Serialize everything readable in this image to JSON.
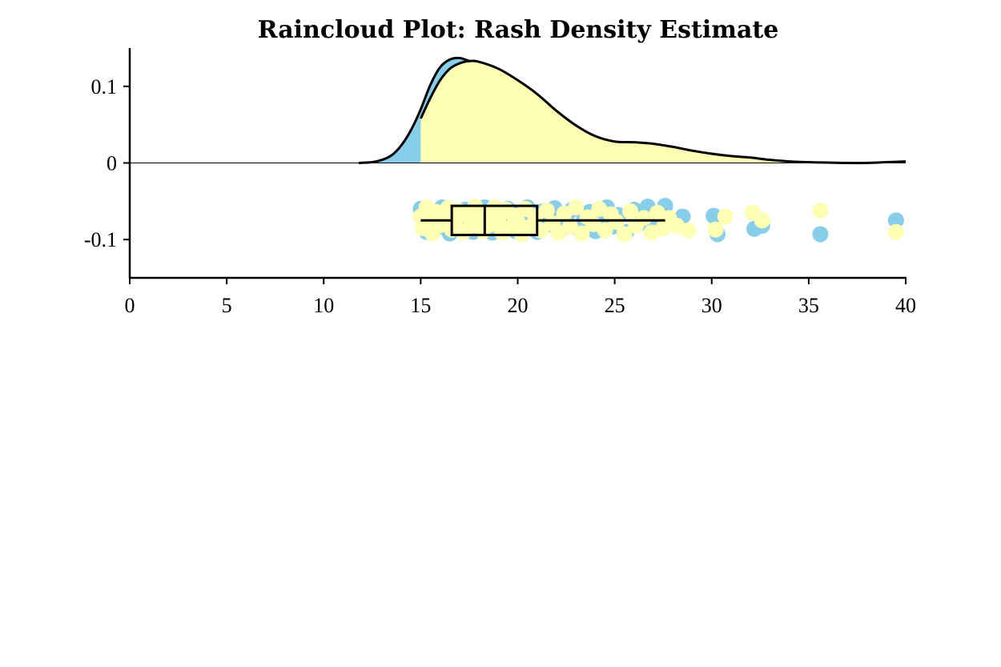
{
  "chart_data": {
    "type": "raincloud",
    "title": "Raincloud Plot: Rash Density Estimate",
    "xlabel": "",
    "ylabel": "",
    "xlim": [
      0,
      40
    ],
    "ylim": [
      -0.15,
      0.15
    ],
    "x_ticks": [
      0,
      5,
      10,
      15,
      20,
      25,
      30,
      35,
      40
    ],
    "x_tick_labels": [
      "0",
      "5",
      "10",
      "15",
      "20",
      "25",
      "30",
      "35",
      "40"
    ],
    "y_ticks": [
      0.1,
      0,
      -0.1
    ],
    "y_tick_labels": [
      "0.1",
      "0",
      "-0.1"
    ],
    "grid": false,
    "colors": {
      "group_a": "#87CEEB",
      "group_b": "#FFFFB3",
      "outline": "#000000"
    },
    "density_blue": {
      "x": [
        11.8,
        12.5,
        13.0,
        13.5,
        14.0,
        14.5,
        15.0,
        15.5,
        16.0,
        16.5,
        17.0,
        17.5
      ],
      "y": [
        0.0,
        0.001,
        0.004,
        0.01,
        0.023,
        0.043,
        0.07,
        0.102,
        0.125,
        0.135,
        0.137,
        0.133
      ]
    },
    "density_yellow": {
      "x": [
        15.0,
        15.5,
        16.0,
        16.5,
        17.0,
        17.5,
        18.0,
        19.0,
        20.0,
        21.0,
        22.0,
        23.0,
        24.0,
        25.0,
        26.0,
        27.0,
        28.0,
        29.0,
        30.0,
        31.0,
        32.0,
        33.0,
        34.0,
        35.0,
        36.0,
        37.0,
        38.0,
        39.0,
        40.0
      ],
      "y": [
        0.058,
        0.085,
        0.108,
        0.123,
        0.13,
        0.133,
        0.132,
        0.123,
        0.108,
        0.09,
        0.068,
        0.049,
        0.035,
        0.028,
        0.027,
        0.025,
        0.021,
        0.016,
        0.012,
        0.009,
        0.007,
        0.004,
        0.002,
        0.001,
        0.0005,
        0.0,
        0.0,
        0.001,
        0.002
      ]
    },
    "box": {
      "whisker_low": 15.0,
      "q1": 16.6,
      "median": 18.3,
      "q3": 21.0,
      "whisker_high": 27.6,
      "y_center": -0.075,
      "y_half_height": 0.019
    },
    "points_blue": [
      [
        15.0,
        -0.06
      ],
      [
        15.2,
        -0.078
      ],
      [
        15.3,
        -0.09
      ],
      [
        15.5,
        -0.065
      ],
      [
        15.7,
        -0.088
      ],
      [
        15.9,
        -0.072
      ],
      [
        16.1,
        -0.058
      ],
      [
        16.3,
        -0.083
      ],
      [
        16.5,
        -0.092
      ],
      [
        16.7,
        -0.066
      ],
      [
        16.9,
        -0.079
      ],
      [
        17.1,
        -0.087
      ],
      [
        17.3,
        -0.061
      ],
      [
        17.5,
        -0.074
      ],
      [
        17.7,
        -0.09
      ],
      [
        17.9,
        -0.068
      ],
      [
        18.1,
        -0.083
      ],
      [
        18.3,
        -0.058
      ],
      [
        18.5,
        -0.077
      ],
      [
        18.7,
        -0.091
      ],
      [
        18.9,
        -0.064
      ],
      [
        19.1,
        -0.08
      ],
      [
        19.3,
        -0.087
      ],
      [
        19.5,
        -0.06
      ],
      [
        19.7,
        -0.072
      ],
      [
        19.9,
        -0.089
      ],
      [
        20.1,
        -0.066
      ],
      [
        20.3,
        -0.082
      ],
      [
        20.5,
        -0.058
      ],
      [
        20.8,
        -0.076
      ],
      [
        21.0,
        -0.09
      ],
      [
        21.3,
        -0.063
      ],
      [
        21.6,
        -0.08
      ],
      [
        21.9,
        -0.059
      ],
      [
        22.2,
        -0.087
      ],
      [
        22.5,
        -0.07
      ],
      [
        22.8,
        -0.061
      ],
      [
        23.1,
        -0.085
      ],
      [
        23.4,
        -0.075
      ],
      [
        23.7,
        -0.064
      ],
      [
        24.0,
        -0.089
      ],
      [
        24.3,
        -0.078
      ],
      [
        24.6,
        -0.058
      ],
      [
        24.9,
        -0.083
      ],
      [
        25.2,
        -0.068
      ],
      [
        25.6,
        -0.09
      ],
      [
        26.0,
        -0.061
      ],
      [
        26.3,
        -0.079
      ],
      [
        26.7,
        -0.057
      ],
      [
        27.0,
        -0.086
      ],
      [
        27.3,
        -0.068
      ],
      [
        27.6,
        -0.056
      ],
      [
        28.5,
        -0.07
      ],
      [
        30.1,
        -0.069
      ],
      [
        30.3,
        -0.093
      ],
      [
        32.2,
        -0.086
      ],
      [
        32.6,
        -0.082
      ],
      [
        35.6,
        -0.093
      ],
      [
        39.5,
        -0.075
      ]
    ],
    "points_yellow": [
      [
        15.0,
        -0.07
      ],
      [
        15.1,
        -0.085
      ],
      [
        15.3,
        -0.058
      ],
      [
        15.5,
        -0.078
      ],
      [
        15.6,
        -0.092
      ],
      [
        15.8,
        -0.064
      ],
      [
        16.0,
        -0.081
      ],
      [
        16.2,
        -0.071
      ],
      [
        16.4,
        -0.059
      ],
      [
        16.6,
        -0.087
      ],
      [
        16.8,
        -0.075
      ],
      [
        17.0,
        -0.063
      ],
      [
        17.2,
        -0.09
      ],
      [
        17.4,
        -0.068
      ],
      [
        17.6,
        -0.082
      ],
      [
        17.8,
        -0.057
      ],
      [
        18.0,
        -0.076
      ],
      [
        18.2,
        -0.089
      ],
      [
        18.4,
        -0.066
      ],
      [
        18.6,
        -0.08
      ],
      [
        18.8,
        -0.058
      ],
      [
        19.0,
        -0.072
      ],
      [
        19.2,
        -0.091
      ],
      [
        19.4,
        -0.061
      ],
      [
        19.6,
        -0.085
      ],
      [
        19.8,
        -0.069
      ],
      [
        20.0,
        -0.077
      ],
      [
        20.2,
        -0.093
      ],
      [
        20.4,
        -0.06
      ],
      [
        20.6,
        -0.084
      ],
      [
        20.9,
        -0.07
      ],
      [
        21.2,
        -0.088
      ],
      [
        21.5,
        -0.062
      ],
      [
        21.8,
        -0.079
      ],
      [
        22.1,
        -0.091
      ],
      [
        22.4,
        -0.066
      ],
      [
        22.7,
        -0.083
      ],
      [
        23.0,
        -0.058
      ],
      [
        23.3,
        -0.092
      ],
      [
        23.6,
        -0.071
      ],
      [
        23.9,
        -0.08
      ],
      [
        24.2,
        -0.06
      ],
      [
        24.5,
        -0.088
      ],
      [
        24.8,
        -0.067
      ],
      [
        25.1,
        -0.077
      ],
      [
        25.5,
        -0.093
      ],
      [
        25.8,
        -0.063
      ],
      [
        26.1,
        -0.082
      ],
      [
        26.5,
        -0.072
      ],
      [
        26.9,
        -0.091
      ],
      [
        27.2,
        -0.065
      ],
      [
        27.5,
        -0.085
      ],
      [
        27.8,
        -0.072
      ],
      [
        28.2,
        -0.082
      ],
      [
        28.8,
        -0.088
      ],
      [
        30.2,
        -0.087
      ],
      [
        30.7,
        -0.07
      ],
      [
        32.1,
        -0.065
      ],
      [
        32.6,
        -0.075
      ],
      [
        35.6,
        -0.062
      ],
      [
        39.5,
        -0.09
      ]
    ]
  }
}
